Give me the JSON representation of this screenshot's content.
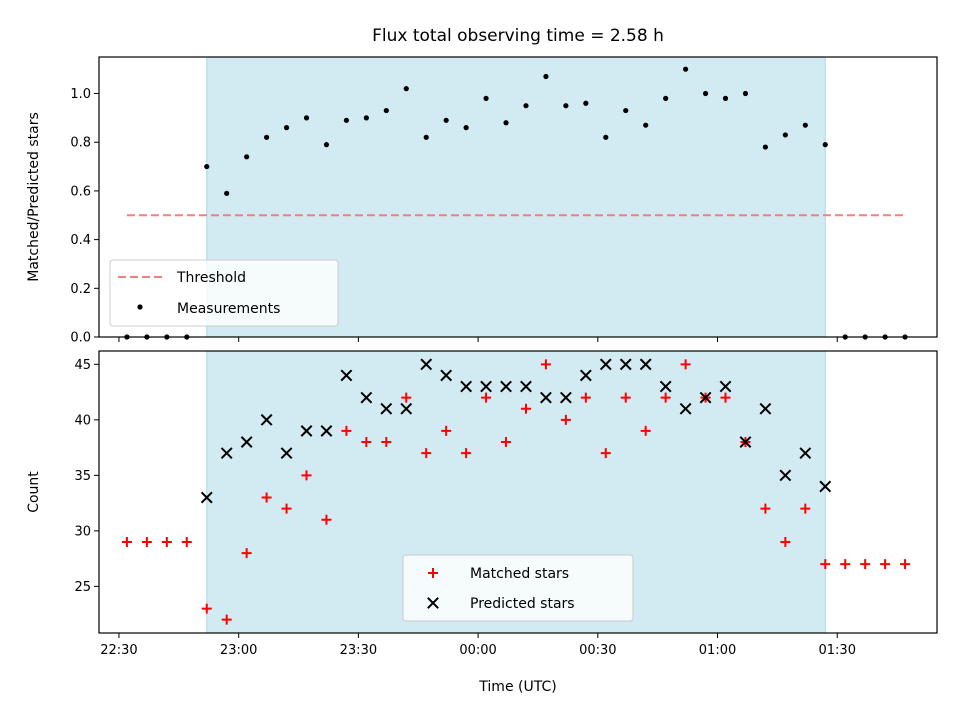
{
  "chart_data": [
    {
      "type": "scatter",
      "title": "Flux total observing time = 2.58 h",
      "xlabel": "",
      "ylabel": "Matched/Predicted stars",
      "ylim": [
        0,
        1.15
      ],
      "yticks": [
        "0.0",
        "0.2",
        "0.4",
        "0.6",
        "0.8",
        "1.0"
      ],
      "xlim": [
        "22:25",
        "01:55"
      ],
      "shaded_region": {
        "from": "22:52",
        "to": "01:27",
        "color": "#add8e6"
      },
      "threshold": {
        "name": "Threshold",
        "y": 0.5,
        "from": "22:32",
        "to": "01:47",
        "color": "#f08080"
      },
      "series": [
        {
          "name": "Measurements",
          "marker": "dot",
          "color": "#000000",
          "points": [
            [
              "22:32",
              0.0
            ],
            [
              "22:37",
              0.0
            ],
            [
              "22:42",
              0.0
            ],
            [
              "22:47",
              0.0
            ],
            [
              "22:52",
              0.7
            ],
            [
              "22:57",
              0.59
            ],
            [
              "23:02",
              0.74
            ],
            [
              "23:07",
              0.82
            ],
            [
              "23:12",
              0.86
            ],
            [
              "23:17",
              0.9
            ],
            [
              "23:22",
              0.79
            ],
            [
              "23:27",
              0.89
            ],
            [
              "23:32",
              0.9
            ],
            [
              "23:37",
              0.93
            ],
            [
              "23:42",
              1.02
            ],
            [
              "23:47",
              0.82
            ],
            [
              "23:52",
              0.89
            ],
            [
              "23:57",
              0.86
            ],
            [
              "00:02",
              0.98
            ],
            [
              "00:07",
              0.88
            ],
            [
              "00:12",
              0.95
            ],
            [
              "00:17",
              1.07
            ],
            [
              "00:22",
              0.95
            ],
            [
              "00:27",
              0.96
            ],
            [
              "00:32",
              0.82
            ],
            [
              "00:37",
              0.93
            ],
            [
              "00:42",
              0.87
            ],
            [
              "00:47",
              0.98
            ],
            [
              "00:52",
              1.1
            ],
            [
              "00:57",
              1.0
            ],
            [
              "01:02",
              0.98
            ],
            [
              "01:07",
              1.0
            ],
            [
              "01:12",
              0.78
            ],
            [
              "01:17",
              0.83
            ],
            [
              "01:22",
              0.87
            ],
            [
              "01:27",
              0.79
            ],
            [
              "01:32",
              0.0
            ],
            [
              "01:37",
              0.0
            ],
            [
              "01:42",
              0.0
            ],
            [
              "01:47",
              0.0
            ]
          ]
        }
      ],
      "legend": {
        "position": "lower-left",
        "entries": [
          "Threshold",
          "Measurements"
        ]
      }
    },
    {
      "type": "scatter",
      "xlabel": "Time (UTC)",
      "ylabel": "Count",
      "ylim": [
        20.8,
        46.2
      ],
      "yticks": [
        "25",
        "30",
        "35",
        "40",
        "45"
      ],
      "xlim": [
        "22:25",
        "01:55"
      ],
      "xticks": [
        "22:30",
        "23:00",
        "23:30",
        "00:00",
        "00:30",
        "01:00",
        "01:30"
      ],
      "shaded_region": {
        "from": "22:52",
        "to": "01:27",
        "color": "#add8e6"
      },
      "series": [
        {
          "name": "Matched stars",
          "marker": "plus",
          "color": "#ff0000",
          "points": [
            [
              "22:32",
              29
            ],
            [
              "22:37",
              29
            ],
            [
              "22:42",
              29
            ],
            [
              "22:47",
              29
            ],
            [
              "22:52",
              23
            ],
            [
              "22:57",
              22
            ],
            [
              "23:02",
              28
            ],
            [
              "23:07",
              33
            ],
            [
              "23:12",
              32
            ],
            [
              "23:17",
              35
            ],
            [
              "23:22",
              31
            ],
            [
              "23:27",
              39
            ],
            [
              "23:32",
              38
            ],
            [
              "23:37",
              38
            ],
            [
              "23:42",
              42
            ],
            [
              "23:47",
              37
            ],
            [
              "23:52",
              39
            ],
            [
              "23:57",
              37
            ],
            [
              "00:02",
              42
            ],
            [
              "00:07",
              38
            ],
            [
              "00:12",
              41
            ],
            [
              "00:17",
              45
            ],
            [
              "00:22",
              40
            ],
            [
              "00:27",
              42
            ],
            [
              "00:32",
              37
            ],
            [
              "00:37",
              42
            ],
            [
              "00:42",
              39
            ],
            [
              "00:47",
              42
            ],
            [
              "00:52",
              45
            ],
            [
              "00:57",
              42
            ],
            [
              "01:02",
              42
            ],
            [
              "01:07",
              38
            ],
            [
              "01:12",
              32
            ],
            [
              "01:17",
              29
            ],
            [
              "01:22",
              32
            ],
            [
              "01:27",
              27
            ],
            [
              "01:32",
              27
            ],
            [
              "01:37",
              27
            ],
            [
              "01:42",
              27
            ],
            [
              "01:47",
              27
            ]
          ]
        },
        {
          "name": "Predicted stars",
          "marker": "x",
          "color": "#000000",
          "points": [
            [
              "22:52",
              33
            ],
            [
              "22:57",
              37
            ],
            [
              "23:02",
              38
            ],
            [
              "23:07",
              40
            ],
            [
              "23:12",
              37
            ],
            [
              "23:17",
              39
            ],
            [
              "23:22",
              39
            ],
            [
              "23:27",
              44
            ],
            [
              "23:32",
              42
            ],
            [
              "23:37",
              41
            ],
            [
              "23:42",
              41
            ],
            [
              "23:47",
              45
            ],
            [
              "23:52",
              44
            ],
            [
              "23:57",
              43
            ],
            [
              "00:02",
              43
            ],
            [
              "00:07",
              43
            ],
            [
              "00:12",
              43
            ],
            [
              "00:17",
              42
            ],
            [
              "00:22",
              42
            ],
            [
              "00:27",
              44
            ],
            [
              "00:32",
              45
            ],
            [
              "00:37",
              45
            ],
            [
              "00:42",
              45
            ],
            [
              "00:47",
              43
            ],
            [
              "00:52",
              41
            ],
            [
              "00:57",
              42
            ],
            [
              "01:02",
              43
            ],
            [
              "01:07",
              38
            ],
            [
              "01:12",
              41
            ],
            [
              "01:17",
              35
            ],
            [
              "01:22",
              37
            ],
            [
              "01:27",
              34
            ]
          ]
        }
      ],
      "legend": {
        "position": "lower-center",
        "entries": [
          "Matched stars",
          "Predicted stars"
        ]
      }
    }
  ]
}
